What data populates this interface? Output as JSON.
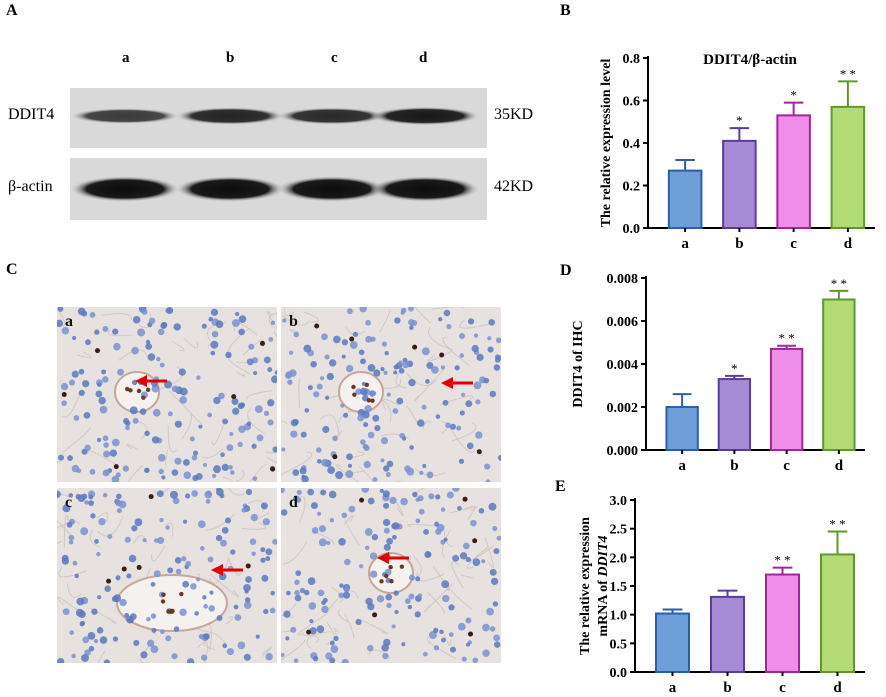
{
  "panel_letters": {
    "A": "A",
    "B": "B",
    "C": "C",
    "D": "D",
    "E": "E"
  },
  "western_blot": {
    "lanes": [
      "a",
      "b",
      "c",
      "d"
    ],
    "rows": [
      {
        "label": "DDIT4",
        "size": "35KD",
        "band_intensity": [
          0.55,
          0.75,
          0.7,
          0.85
        ]
      },
      {
        "label": "β-actin",
        "size": "42KD",
        "band_intensity": [
          0.95,
          0.95,
          0.95,
          0.95
        ]
      }
    ]
  },
  "ihc_images": [
    {
      "label": "a"
    },
    {
      "label": "b"
    },
    {
      "label": "c"
    },
    {
      "label": "d"
    }
  ],
  "colors": {
    "a": "#6f9fd8",
    "a_edge": "#2b5fa8",
    "b": "#a58ad6",
    "b_edge": "#5b3c9e",
    "c": "#ee8ee8",
    "c_edge": "#a4249c",
    "d": "#b2db76",
    "d_edge": "#5e9a2a"
  },
  "chart_data": [
    {
      "type": "bar",
      "panel": "B",
      "title": "DDIT4/β-actin",
      "ylabel": "The relative expression level",
      "categories": [
        "a",
        "b",
        "c",
        "d"
      ],
      "values": [
        0.27,
        0.41,
        0.53,
        0.57
      ],
      "errors": [
        0.05,
        0.06,
        0.06,
        0.12
      ],
      "significance": [
        "",
        "*",
        "*",
        "* *"
      ],
      "ylim": [
        0,
        0.8
      ],
      "yticks": [
        "0.0",
        "0.2",
        "0.4",
        "0.6",
        "0.8"
      ]
    },
    {
      "type": "bar",
      "panel": "D",
      "title": "",
      "ylabel": "DDIT4 of IHC",
      "categories": [
        "a",
        "b",
        "c",
        "d"
      ],
      "values": [
        0.002,
        0.0033,
        0.0047,
        0.007
      ],
      "errors": [
        0.0006,
        0.00015,
        0.00015,
        0.0004
      ],
      "significance": [
        "",
        "*",
        "* *",
        "* *"
      ],
      "ylim": [
        0,
        0.008
      ],
      "yticks": [
        "0.000",
        "0.002",
        "0.004",
        "0.006",
        "0.008"
      ]
    },
    {
      "type": "bar",
      "panel": "E",
      "title": "",
      "ylabel": "The relative expression",
      "ylabel2_prefix": "mRNA of ",
      "ylabel2_gene": "DDIT4",
      "categories": [
        "a",
        "b",
        "c",
        "d"
      ],
      "values": [
        1.02,
        1.31,
        1.7,
        2.05
      ],
      "errors": [
        0.07,
        0.11,
        0.12,
        0.4
      ],
      "significance": [
        "",
        "",
        "* *",
        "* *"
      ],
      "ylim": [
        0,
        3.0
      ],
      "yticks": [
        "0.0",
        "0.5",
        "1.0",
        "1.5",
        "2.0",
        "2.5",
        "3.0"
      ]
    }
  ]
}
